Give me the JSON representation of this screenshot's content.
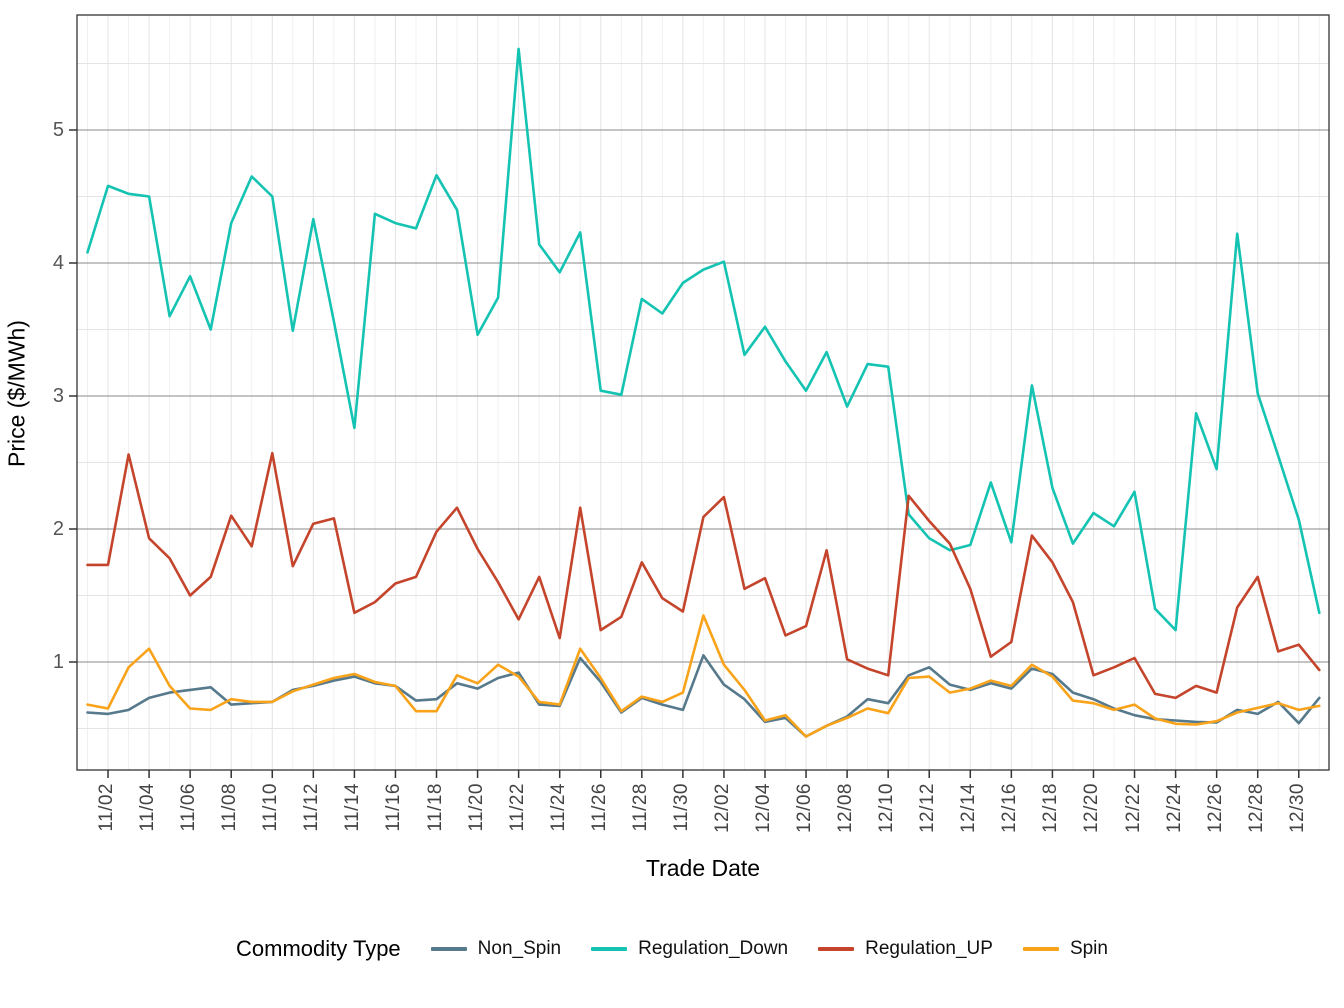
{
  "chart_data": {
    "type": "line",
    "title": "",
    "xlabel": "Trade Date",
    "ylabel": "Price ($/MWh)",
    "legend_title": "Commodity Type",
    "legend_position": "bottom",
    "grid": true,
    "ylim": [
      0.19,
      5.87
    ],
    "yticks": [
      1,
      2,
      3,
      4,
      5
    ],
    "y_minor_step": 0.5,
    "x": [
      "11/01",
      "11/02",
      "11/03",
      "11/04",
      "11/05",
      "11/06",
      "11/07",
      "11/08",
      "11/09",
      "11/10",
      "11/11",
      "11/12",
      "11/13",
      "11/14",
      "11/15",
      "11/16",
      "11/17",
      "11/18",
      "11/19",
      "11/20",
      "11/21",
      "11/22",
      "11/23",
      "11/24",
      "11/25",
      "11/26",
      "11/27",
      "11/28",
      "11/29",
      "11/30",
      "12/01",
      "12/02",
      "12/03",
      "12/04",
      "12/05",
      "12/06",
      "12/07",
      "12/08",
      "12/09",
      "12/10",
      "12/11",
      "12/12",
      "12/13",
      "12/14",
      "12/15",
      "12/16",
      "12/17",
      "12/18",
      "12/19",
      "12/20",
      "12/21",
      "12/22",
      "12/23",
      "12/24",
      "12/25",
      "12/26",
      "12/27",
      "12/28",
      "12/29",
      "12/30",
      "12/31"
    ],
    "x_tick_labels": [
      "11/02",
      "11/04",
      "11/06",
      "11/08",
      "11/10",
      "11/12",
      "11/14",
      "11/16",
      "11/18",
      "11/20",
      "11/22",
      "11/24",
      "11/26",
      "11/28",
      "11/30",
      "12/02",
      "12/04",
      "12/06",
      "12/08",
      "12/10",
      "12/12",
      "12/14",
      "12/16",
      "12/18",
      "12/20",
      "12/22",
      "12/24",
      "12/26",
      "12/28",
      "12/30"
    ],
    "series": [
      {
        "name": "Non_Spin",
        "color": "#56798C",
        "values": [
          0.62,
          0.61,
          0.64,
          0.73,
          0.77,
          0.79,
          0.81,
          0.68,
          0.69,
          0.7,
          0.79,
          0.82,
          0.86,
          0.89,
          0.84,
          0.82,
          0.71,
          0.72,
          0.84,
          0.8,
          0.88,
          0.92,
          0.68,
          0.67,
          1.03,
          0.85,
          0.62,
          0.73,
          0.68,
          0.64,
          1.05,
          0.83,
          0.72,
          0.55,
          0.58,
          0.44,
          0.52,
          0.59,
          0.72,
          0.69,
          0.9,
          0.96,
          0.83,
          0.79,
          0.84,
          0.8,
          0.95,
          0.91,
          0.77,
          0.72,
          0.65,
          0.6,
          0.57,
          0.56,
          0.55,
          0.545,
          0.64,
          0.61,
          0.7,
          0.54,
          0.73
        ]
      },
      {
        "name": "Regulation_Down",
        "color": "#14C3B2",
        "values": [
          4.08,
          4.58,
          4.52,
          4.5,
          3.6,
          3.9,
          3.5,
          4.3,
          4.65,
          4.5,
          3.49,
          4.33,
          3.56,
          2.76,
          4.37,
          4.3,
          4.26,
          4.66,
          4.4,
          3.46,
          3.74,
          5.61,
          4.14,
          3.93,
          4.23,
          3.04,
          3.01,
          3.73,
          3.62,
          3.85,
          3.95,
          4.01,
          3.31,
          3.52,
          3.26,
          3.04,
          3.33,
          2.92,
          3.24,
          3.22,
          2.11,
          1.93,
          1.84,
          1.88,
          2.35,
          1.9,
          3.08,
          2.31,
          1.89,
          2.12,
          2.02,
          2.28,
          1.4,
          1.24,
          2.87,
          2.45,
          4.22,
          3.02,
          2.55,
          2.07,
          1.37
        ]
      },
      {
        "name": "Regulation_UP",
        "color": "#C4442C",
        "values": [
          1.73,
          1.73,
          2.56,
          1.93,
          1.78,
          1.5,
          1.64,
          2.1,
          1.87,
          2.57,
          1.72,
          2.04,
          2.08,
          1.37,
          1.45,
          1.59,
          1.64,
          1.98,
          2.16,
          1.85,
          1.6,
          1.32,
          1.64,
          1.18,
          2.16,
          1.24,
          1.34,
          1.75,
          1.48,
          1.38,
          2.09,
          2.24,
          1.55,
          1.63,
          1.2,
          1.27,
          1.84,
          1.02,
          0.95,
          0.9,
          2.25,
          2.06,
          1.89,
          1.55,
          1.04,
          1.15,
          1.95,
          1.75,
          1.45,
          0.9,
          0.96,
          1.03,
          0.76,
          0.73,
          0.82,
          0.77,
          1.41,
          1.64,
          1.08,
          1.13,
          0.94
        ]
      },
      {
        "name": "Spin",
        "color": "#F8A31A",
        "values": [
          0.68,
          0.65,
          0.96,
          1.1,
          0.82,
          0.65,
          0.64,
          0.72,
          0.7,
          0.7,
          0.78,
          0.83,
          0.88,
          0.91,
          0.85,
          0.82,
          0.63,
          0.63,
          0.9,
          0.84,
          0.98,
          0.89,
          0.7,
          0.68,
          1.1,
          0.88,
          0.63,
          0.74,
          0.7,
          0.77,
          1.35,
          0.98,
          0.79,
          0.56,
          0.6,
          0.44,
          0.52,
          0.58,
          0.65,
          0.615,
          0.88,
          0.89,
          0.77,
          0.8,
          0.86,
          0.82,
          0.98,
          0.89,
          0.71,
          0.69,
          0.64,
          0.68,
          0.575,
          0.535,
          0.53,
          0.555,
          0.62,
          0.655,
          0.69,
          0.64,
          0.67
        ]
      }
    ],
    "style": {
      "panel_border_color": "#333333",
      "major_grid_color": "#a0a0a0",
      "minor_grid_color": "#e4e4e4",
      "day_grid_color": "#f0f0f0",
      "tick_color": "#333333",
      "background": "#ffffff",
      "line_width": 2.6
    }
  }
}
